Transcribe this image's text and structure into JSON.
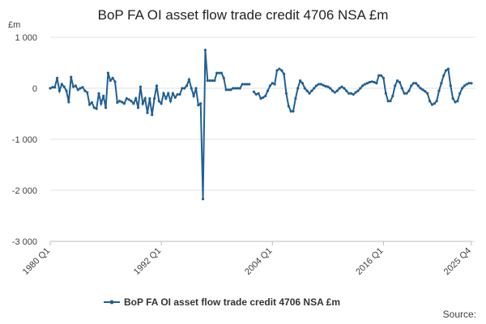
{
  "chart_data": {
    "type": "line",
    "title": "BoP FA OI asset flow trade credit 4706 NSA £m",
    "y_label": "£m",
    "source": "Source:",
    "ylim": [
      -3000,
      1000
    ],
    "yticks": [
      {
        "value": 1000,
        "label": "1 000"
      },
      0,
      {
        "value": -1000,
        "label": "-1 000"
      },
      {
        "value": -2000,
        "label": "-2 000"
      },
      {
        "value": -3000,
        "label": "-3 000"
      }
    ],
    "grid": true,
    "legend": "bottom",
    "categories": [
      "1980 Q1",
      null,
      null,
      null,
      null,
      null,
      null,
      null,
      null,
      null,
      null,
      null,
      null,
      null,
      null,
      null,
      null,
      null,
      null,
      null,
      null,
      null,
      null,
      null,
      null,
      null,
      null,
      null,
      null,
      null,
      null,
      null,
      null,
      null,
      null,
      null,
      null,
      null,
      null,
      null,
      null,
      null,
      null,
      null,
      null,
      null,
      null,
      null,
      "1992 Q1",
      null,
      null,
      null,
      null,
      null,
      null,
      null,
      null,
      null,
      null,
      null,
      null,
      null,
      null,
      null,
      null,
      null,
      null,
      null,
      null,
      null,
      null,
      null,
      null,
      null,
      null,
      null,
      null,
      null,
      null,
      null,
      null,
      null,
      null,
      null,
      null,
      null,
      null,
      null,
      null,
      null,
      null,
      null,
      null,
      null,
      null,
      null,
      "2004 Q1",
      null,
      null,
      null,
      null,
      null,
      null,
      null,
      null,
      null,
      null,
      null,
      null,
      null,
      null,
      null,
      null,
      null,
      null,
      null,
      null,
      null,
      null,
      null,
      null,
      null,
      null,
      null,
      null,
      null,
      null,
      null,
      null,
      null,
      null,
      null,
      null,
      null,
      null,
      null,
      null,
      null,
      null,
      null,
      null,
      null,
      null,
      null,
      "2016 Q1",
      null,
      null,
      null,
      null,
      null,
      null,
      null,
      null,
      null,
      null,
      null,
      null,
      null,
      null,
      null,
      null,
      null,
      null,
      null,
      null,
      null,
      null,
      null,
      null,
      null,
      null,
      null,
      null,
      null,
      null,
      null,
      null,
      null,
      null,
      null,
      null,
      null,
      "2025 Q4"
    ],
    "series": [
      {
        "name": "BoP FA OI asset flow trade credit 4706 NSA £m",
        "color": "#206095",
        "values": [
          0,
          20,
          20,
          200,
          -50,
          80,
          30,
          -50,
          -270,
          220,
          30,
          50,
          -30,
          0,
          20,
          -50,
          -80,
          -320,
          -280,
          -380,
          -400,
          -100,
          -300,
          -150,
          -380,
          300,
          150,
          200,
          130,
          -280,
          -250,
          -270,
          -300,
          -200,
          -220,
          -250,
          -300,
          -200,
          -380,
          30,
          -300,
          -200,
          -480,
          -200,
          -520,
          -200,
          50,
          -250,
          -300,
          -100,
          -200,
          -100,
          -250,
          -100,
          -180,
          -120,
          -120,
          0,
          0,
          50,
          170,
          0,
          -150,
          0,
          -330,
          -300,
          -2170,
          750,
          150,
          150,
          150,
          150,
          300,
          300,
          300,
          200,
          -30,
          -30,
          -30,
          0,
          0,
          0,
          0,
          80,
          80,
          80,
          80,
          null,
          -70,
          -120,
          -100,
          -200,
          -180,
          -150,
          -50,
          50,
          100,
          80,
          350,
          380,
          350,
          280,
          -100,
          -350,
          -450,
          -450,
          -200,
          0,
          150,
          100,
          0,
          -50,
          -100,
          -50,
          0,
          50,
          80,
          80,
          60,
          40,
          30,
          0,
          -50,
          -80,
          -50,
          0,
          30,
          0,
          -50,
          -100,
          -100,
          -120,
          -80,
          -50,
          0,
          50,
          80,
          100,
          120,
          130,
          120,
          100,
          250,
          250,
          200,
          -100,
          -250,
          -250,
          -150,
          50,
          150,
          120,
          0,
          -100,
          -100,
          -50,
          50,
          100,
          100,
          50,
          0,
          -30,
          -60,
          -100,
          -250,
          -320,
          -300,
          -250,
          -50,
          100,
          250,
          350,
          380,
          50,
          -200,
          -270,
          -250,
          -100,
          0,
          50,
          80,
          100,
          100
        ]
      }
    ]
  }
}
